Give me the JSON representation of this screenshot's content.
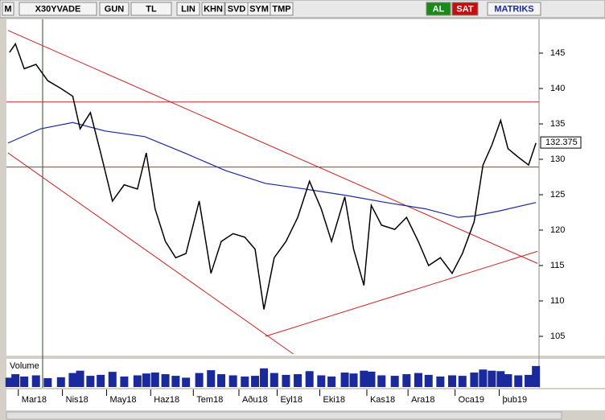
{
  "toolbar": {
    "buttons": [
      "M",
      "X30YVADE",
      "GUN",
      "TL",
      "LIN",
      "KHN",
      "SVD",
      "SYM",
      "TMP",
      "AL",
      "SAT",
      "MATRIKS"
    ]
  },
  "chart_data": {
    "type": "line",
    "x": [
      1,
      5,
      11,
      19,
      27,
      36,
      44,
      49,
      56,
      63,
      71,
      79,
      88,
      94,
      100,
      107,
      114,
      121,
      130,
      138,
      145,
      153,
      161,
      168,
      174,
      181,
      189,
      197,
      205,
      213,
      220,
      229,
      235,
      242,
      247,
      254,
      263,
      271,
      279,
      286,
      294,
      302,
      309,
      317,
      323,
      329,
      335,
      340,
      347,
      354,
      359
    ],
    "series": [
      {
        "name": "X30YVADE",
        "color": "#000000",
        "values": [
          145.1,
          146.3,
          142.8,
          143.4,
          141.1,
          140,
          138.9,
          134.3,
          136.6,
          130.9,
          124.1,
          126.4,
          125.8,
          130.9,
          123,
          118.4,
          116.1,
          116.7,
          124.1,
          113.9,
          118.4,
          119.5,
          119,
          117.3,
          108.8,
          116.1,
          118.4,
          121.8,
          126.9,
          123,
          118.4,
          124.7,
          117.3,
          112.2,
          123.5,
          120.7,
          120.1,
          121.8,
          118.4,
          115,
          116.1,
          113.9,
          116.7,
          121.2,
          129.2,
          132,
          135.5,
          131.5,
          130.3,
          129.2,
          132.3
        ]
      }
    ],
    "ma": {
      "color": "#1a2a9c",
      "x": [
        0,
        22,
        44,
        66,
        93,
        120,
        148,
        175,
        202,
        230,
        257,
        284,
        306,
        317,
        334,
        359
      ],
      "values": [
        132.3,
        134.3,
        135.2,
        134,
        133.2,
        130.9,
        128.4,
        126.6,
        125.8,
        124.9,
        123.9,
        123,
        121.8,
        122,
        122.7,
        123.9
      ]
    },
    "hlines": [
      138.1,
      128.9
    ],
    "trendlines": [
      {
        "x": [
          0,
          360
        ],
        "y": [
          148.2,
          115.3
        ]
      },
      {
        "x": [
          0,
          194
        ],
        "y": [
          130.9,
          102.5
        ]
      },
      {
        "x": [
          175,
          360
        ],
        "y": [
          105,
          117
        ]
      }
    ],
    "line_color": "#cc2222",
    "last_price": 132.375,
    "xlim": [
      0,
      360
    ],
    "ylim": [
      102.5,
      150
    ],
    "yticks": [
      105,
      110,
      115,
      120,
      125,
      130,
      135,
      140,
      145
    ],
    "xticks": [
      {
        "value": 7,
        "label": "Mar18"
      },
      {
        "value": 37,
        "label": "Nis18"
      },
      {
        "value": 67,
        "label": "May18"
      },
      {
        "value": 97,
        "label": "Haz18"
      },
      {
        "value": 126,
        "label": "Tem18"
      },
      {
        "value": 157,
        "label": "Aðu18"
      },
      {
        "value": 183,
        "label": "Eyl18"
      },
      {
        "value": 212,
        "label": "Eki18"
      },
      {
        "value": 244,
        "label": "Kas18"
      },
      {
        "value": 272,
        "label": "Ara18"
      },
      {
        "value": 304,
        "label": "Oca19"
      },
      {
        "value": 334,
        "label": "þub19"
      }
    ],
    "volume": {
      "label": "Volume",
      "color": "#1a2a9c",
      "vlim": [
        0,
        100
      ],
      "values": [
        40,
        55,
        45,
        50,
        38,
        42,
        60,
        70,
        48,
        52,
        65,
        45,
        50,
        58,
        62,
        55,
        48,
        40,
        60,
        72,
        55,
        50,
        45,
        48,
        80,
        60,
        52,
        55,
        68,
        50,
        45,
        62,
        58,
        70,
        66,
        50,
        48,
        55,
        60,
        52,
        45,
        50,
        48,
        62,
        75,
        70,
        68,
        55,
        50,
        52,
        90
      ]
    }
  }
}
